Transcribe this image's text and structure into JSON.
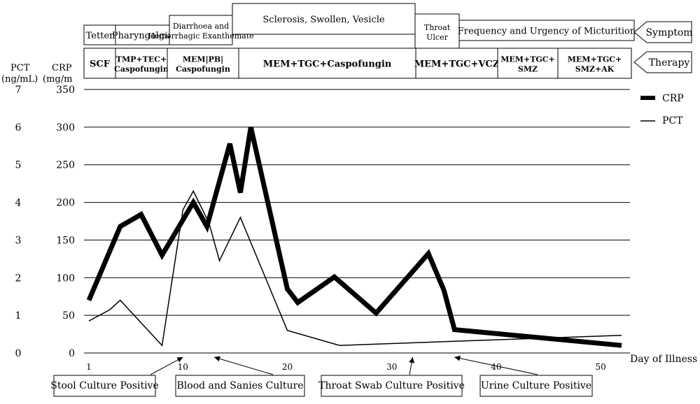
{
  "chart_data": {
    "type": "line",
    "xlabel": "Day of Illness",
    "x_ticks": [
      1,
      10,
      20,
      30,
      40,
      50
    ],
    "xlim": [
      1,
      52
    ],
    "crp_axis": {
      "label_line1": "CRP",
      "label_line2": "(mg/m",
      "ylim": [
        0,
        350
      ],
      "ticks": [
        0,
        50,
        100,
        150,
        200,
        250,
        300,
        350
      ]
    },
    "pct_axis": {
      "label_line1": "PCT",
      "label_line2": "(ng/mL)",
      "ylim": [
        0,
        7
      ],
      "ticks": [
        0,
        1,
        2,
        3,
        4,
        5,
        6,
        7
      ]
    },
    "grid": true,
    "legend_position": "top-right",
    "series": [
      {
        "name": "CRP",
        "axis": "crp",
        "color": "#000000",
        "style": "thick",
        "x": [
          1,
          4,
          6,
          8,
          11,
          12.3,
          14.5,
          15.5,
          16.5,
          20,
          21,
          24.5,
          28.5,
          33.5,
          35,
          36,
          52
        ],
        "y": [
          70,
          168,
          184,
          130,
          200,
          168,
          278,
          213,
          300,
          85,
          67,
          101,
          53,
          132,
          83,
          31,
          10
        ]
      },
      {
        "name": "PCT",
        "axis": "pct",
        "color": "#000000",
        "style": "thin",
        "x": [
          1,
          3,
          4,
          8,
          10,
          11,
          12.5,
          13.5,
          15.5,
          20,
          25,
          52
        ],
        "y": [
          0.85,
          1.15,
          1.4,
          0.2,
          3.8,
          4.3,
          3.45,
          2.45,
          3.6,
          0.6,
          0.2,
          0.47
        ]
      }
    ],
    "symptom_row": {
      "label": "Symptom",
      "items": [
        {
          "text": "Tetter"
        },
        {
          "text": "Pharyngalgia"
        },
        {
          "text_line1": "Diarrhoea and",
          "text_line2": "Hemorrhagic Exanthemate"
        },
        {
          "text": "Sclerosis, Swollen, Vesicle"
        },
        {
          "text_line1": "Throat",
          "text_line2": "Ulcer"
        },
        {
          "text": "Frequency and Urgency of Micturition"
        }
      ]
    },
    "therapy_row": {
      "label": "Therapy",
      "items": [
        {
          "text": "SCF"
        },
        {
          "text_line1": "TMP+TEC+",
          "text_line2": "Caspofungin"
        },
        {
          "text_line1": "MEM|PB|",
          "text_line2": "Caspofungin"
        },
        {
          "text": "MEM+TGC+Caspofungin"
        },
        {
          "text": "MEM+TGC+VCZ"
        },
        {
          "text_line1": "MEM+TGC+",
          "text_line2": "SMZ"
        },
        {
          "text_line1": "MEM+TGC+",
          "text_line2": "SMZ+AK"
        }
      ]
    },
    "annotations": [
      {
        "text": "Stool Culture Positive",
        "arrow_day": 10
      },
      {
        "text": "Blood and Sanies Culture",
        "arrow_day": 13
      },
      {
        "text": "Throat Swab Culture Positive",
        "arrow_day": 32
      },
      {
        "text": "Urine Culture Positive",
        "arrow_day": 36
      }
    ]
  }
}
